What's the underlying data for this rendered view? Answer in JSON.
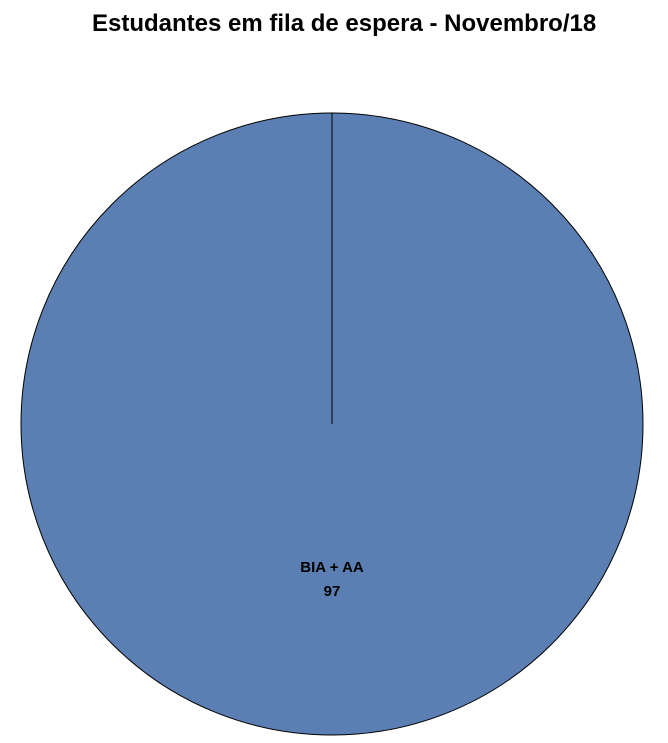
{
  "chart_data": {
    "type": "pie",
    "title": "Estudantes em fila de espera - Novembro/18",
    "categories": [
      "BIA + AA"
    ],
    "values": [
      97
    ],
    "colors": [
      "#5B7FB3"
    ],
    "data_labels": [
      "BIA + AA",
      "97"
    ],
    "legend": "none"
  }
}
